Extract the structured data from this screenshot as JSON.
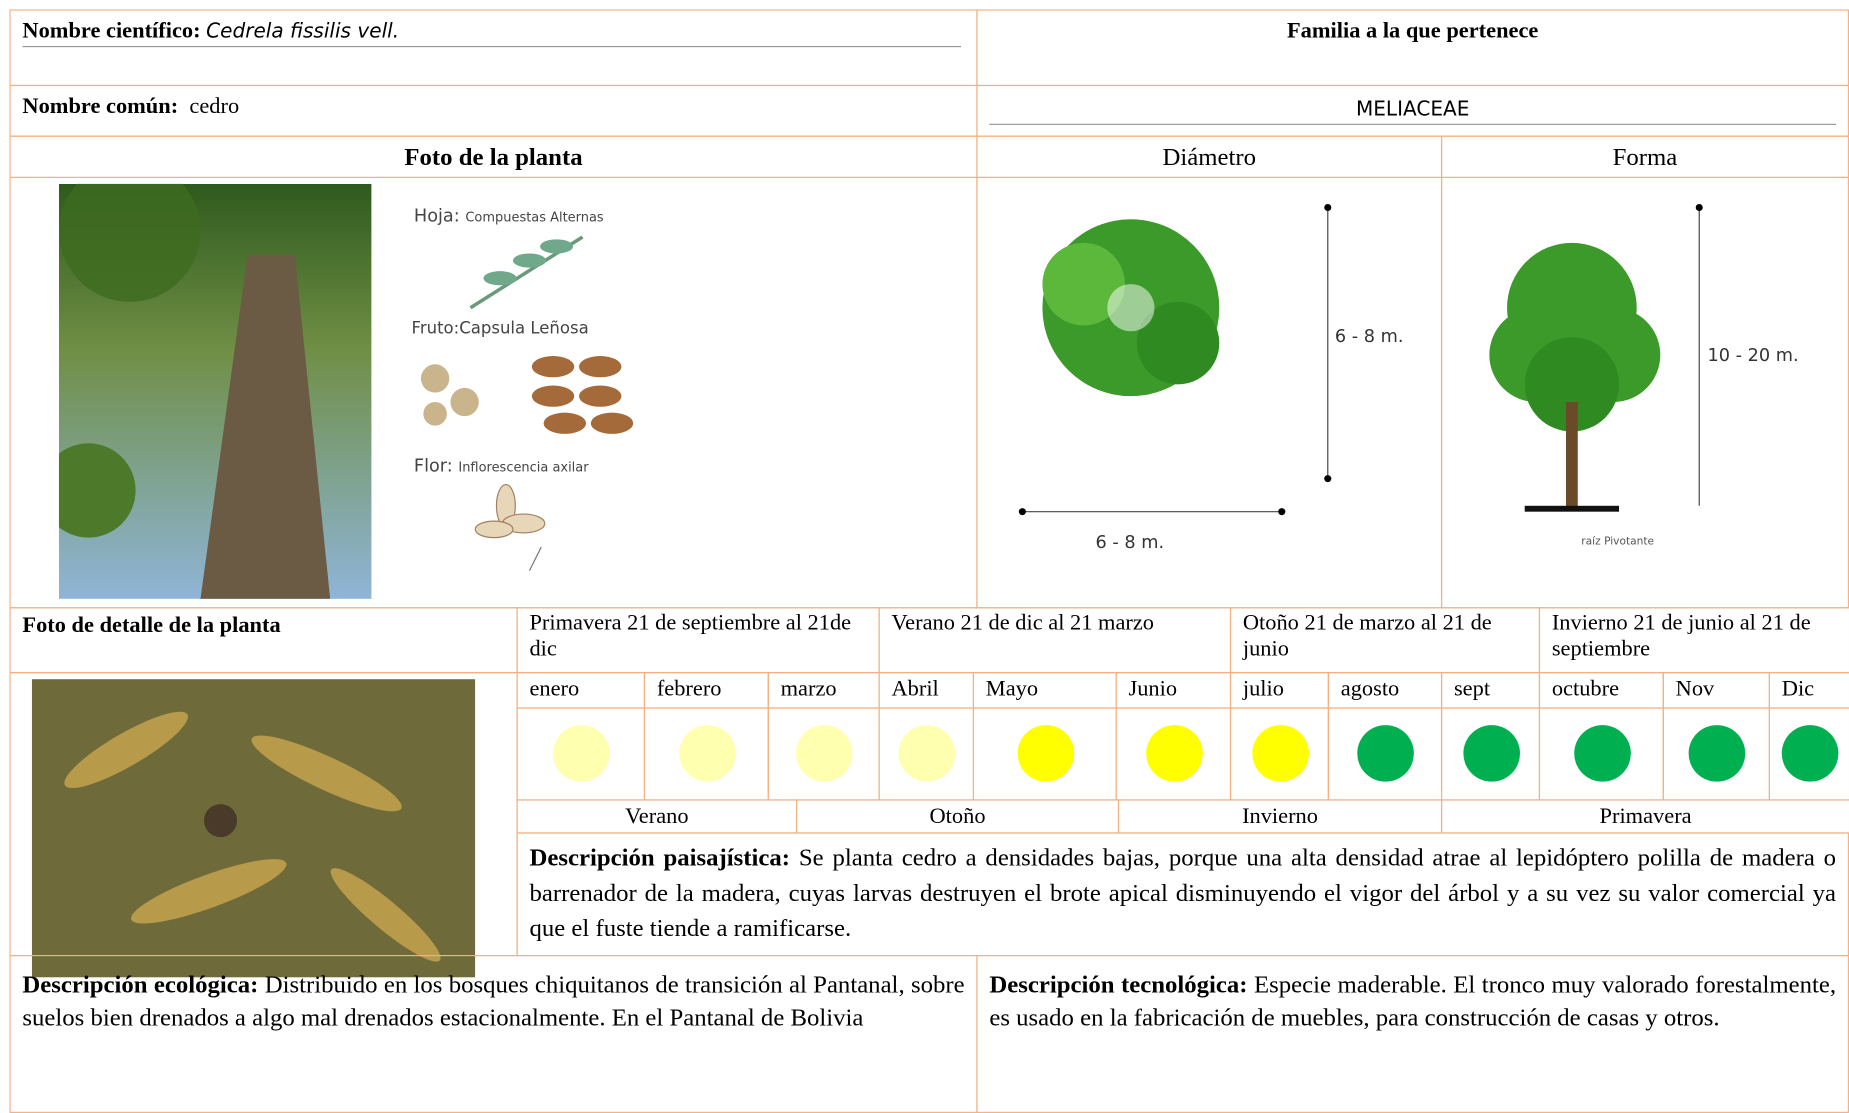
{
  "header": {
    "scientific_name_label": "Nombre científico:",
    "scientific_name": "Cedrela fissilis vell.",
    "common_name_label": "Nombre común:",
    "common_name": "cedro",
    "family_label": "Familia a la que pertenece",
    "family": "MELIACEAE"
  },
  "photo": {
    "title": "Foto de la planta",
    "leaf": "Hoja:",
    "leaf_text": "Compuestas Alternas",
    "fruit": "Fruto:Capsula Leñosa",
    "flower": "Flor:",
    "flower_text": "Inflorescencia axilar"
  },
  "diameter": {
    "title": "Diámetro",
    "height_label": "6 - 8 m.",
    "width_label": "6 - 8 m."
  },
  "form": {
    "title": "Forma",
    "height_label": "10 - 20 m.",
    "root_label": "raíz Pivotante"
  },
  "detail_title": "Foto de detalle de la planta",
  "seasons_top": [
    "Primavera 21 de septiembre al 21de dic",
    "Verano 21 de dic al 21 marzo",
    "Otoño 21 de marzo al 21 de junio",
    "Invierno 21 de junio al 21 de septiembre"
  ],
  "months": [
    {
      "name": "enero",
      "color": "#ffffb0"
    },
    {
      "name": "febrero",
      "color": "#ffffb0"
    },
    {
      "name": "marzo",
      "color": "#ffffb0"
    },
    {
      "name": "Abril",
      "color": "#ffffb0"
    },
    {
      "name": "Mayo",
      "color": "#ffff00"
    },
    {
      "name": "Junio",
      "color": "#ffff00"
    },
    {
      "name": "julio",
      "color": "#ffff00"
    },
    {
      "name": "agosto",
      "color": "#00b050"
    },
    {
      "name": "sept",
      "color": "#00b050"
    },
    {
      "name": "octubre",
      "color": "#00b050"
    },
    {
      "name": "Nov",
      "color": "#00b050"
    },
    {
      "name": "Dic",
      "color": "#00b050"
    }
  ],
  "seasons_bottom": [
    "Verano",
    "Otoño",
    "Invierno",
    "Primavera"
  ],
  "landscape": {
    "label": "Descripción paisajística:",
    "text": "Se planta cedro a densidades bajas, porque una alta densidad atrae al lepidóptero polilla de madera o barrenador de la madera, cuyas larvas destruyen el brote apical disminuyendo el vigor del árbol y a su vez su valor comercial ya que el fuste tiende a ramificarse."
  },
  "ecological": {
    "label": "Descripción ecológica:",
    "text": "Distribuido en los bosques chiquitanos de transición al Pantanal, sobre suelos bien drenados a algo mal drenados estacionalmente. En el Pantanal de Bolivia"
  },
  "technological": {
    "label": "Descripción tecnológica:",
    "text": "Especie maderable. El tronco muy valorado forestalmente, es usado en la fabricación de muebles, para construcción de casas y otros."
  }
}
